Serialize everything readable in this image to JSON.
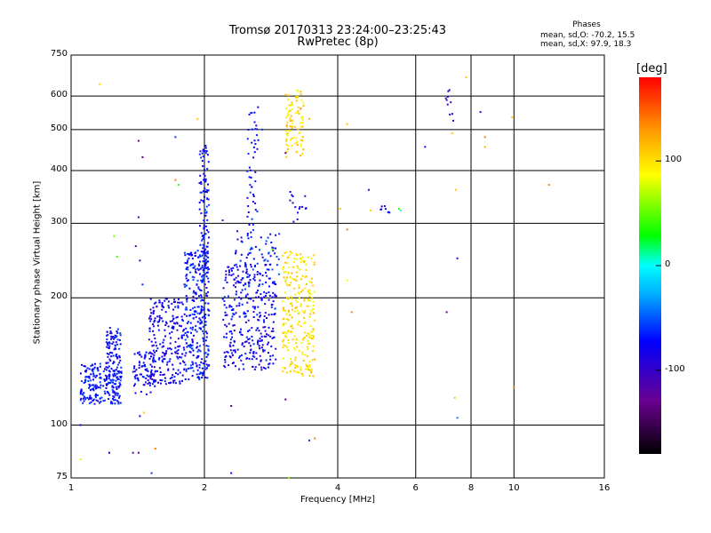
{
  "chart_data": {
    "type": "scatter",
    "title": "Tromsø 20170313 23:24:00–23:25:43",
    "subtitle": "RwPretec (8p)",
    "xlabel": "Frequency [MHz]",
    "ylabel": "Stationary phase Virtual Height [km]",
    "xscale": "log",
    "yscale": "log",
    "xlim": [
      1,
      16
    ],
    "ylim": [
      75,
      750
    ],
    "grid": true,
    "x_ticks": [
      "1",
      "2",
      "4",
      "6",
      "8",
      "10",
      "16"
    ],
    "y_ticks": [
      "75",
      "100",
      "200",
      "300",
      "400",
      "500",
      "600",
      "750"
    ],
    "phase_stats": {
      "header": "Phases",
      "line_o": "mean, sd,O: -70.2, 15.5",
      "line_x": "mean, sd,X:  97.9, 18.3"
    },
    "colorbar": {
      "label": "[deg]",
      "range": [
        -180,
        180
      ],
      "ticks": [
        "100",
        "0",
        "-100"
      ]
    },
    "groups": [
      {
        "x_range": [
          1.05,
          1.3
        ],
        "y_range": [
          112,
          140
        ],
        "phase": -70,
        "count": 230
      },
      {
        "x_range": [
          1.2,
          1.3
        ],
        "y_range": [
          140,
          170
        ],
        "phase": -75,
        "count": 70
      },
      {
        "x_range": [
          1.38,
          1.55
        ],
        "y_range": [
          118,
          150
        ],
        "phase": -80,
        "count": 80
      },
      {
        "x_range": [
          1.5,
          1.8
        ],
        "y_range": [
          125,
          200
        ],
        "phase": -80,
        "count": 220
      },
      {
        "x_range": [
          1.8,
          2.05
        ],
        "y_range": [
          128,
          260
        ],
        "phase": -70,
        "count": 330
      },
      {
        "x_range": [
          1.95,
          2.05
        ],
        "y_range": [
          250,
          460
        ],
        "phase": -72,
        "count": 90
      },
      {
        "x_range": [
          2.2,
          2.9
        ],
        "y_range": [
          135,
          240
        ],
        "phase": -80,
        "count": 300
      },
      {
        "x_range": [
          2.35,
          2.95
        ],
        "y_range": [
          200,
          290
        ],
        "phase": -70,
        "count": 90
      },
      {
        "x_range": [
          2.5,
          2.65
        ],
        "y_range": [
          280,
          570
        ],
        "phase": -72,
        "count": 50
      },
      {
        "x_range": [
          3.0,
          3.55
        ],
        "y_range": [
          130,
          260
        ],
        "phase": 98,
        "count": 260
      },
      {
        "x_range": [
          3.05,
          3.35
        ],
        "y_range": [
          430,
          620
        ],
        "phase": 100,
        "count": 90
      },
      {
        "x_range": [
          3.1,
          3.4
        ],
        "y_range": [
          300,
          360
        ],
        "phase": -90,
        "count": 14
      },
      {
        "x_range": [
          5.0,
          5.4
        ],
        "y_range": [
          318,
          330
        ],
        "phase": -85,
        "count": 8
      },
      {
        "x_range": [
          7.0,
          7.3
        ],
        "y_range": [
          520,
          620
        ],
        "phase": -95,
        "count": 8
      }
    ],
    "points": [
      {
        "x": 1.16,
        "y": 640,
        "phase": 100
      },
      {
        "x": 1.25,
        "y": 280,
        "phase": 60
      },
      {
        "x": 1.27,
        "y": 250,
        "phase": 40
      },
      {
        "x": 1.42,
        "y": 470,
        "phase": -130
      },
      {
        "x": 1.45,
        "y": 430,
        "phase": -140
      },
      {
        "x": 1.42,
        "y": 310,
        "phase": -100
      },
      {
        "x": 1.4,
        "y": 265,
        "phase": -120
      },
      {
        "x": 1.43,
        "y": 245,
        "phase": -110
      },
      {
        "x": 1.45,
        "y": 215,
        "phase": -60
      },
      {
        "x": 1.43,
        "y": 105,
        "phase": -90
      },
      {
        "x": 1.46,
        "y": 107,
        "phase": 110
      },
      {
        "x": 1.42,
        "y": 86,
        "phase": -130
      },
      {
        "x": 1.38,
        "y": 86,
        "phase": -120
      },
      {
        "x": 1.55,
        "y": 88,
        "phase": 140
      },
      {
        "x": 1.52,
        "y": 77,
        "phase": -60
      },
      {
        "x": 1.22,
        "y": 86,
        "phase": -80
      },
      {
        "x": 1.05,
        "y": 83,
        "phase": 80
      },
      {
        "x": 1.05,
        "y": 100,
        "phase": -100
      },
      {
        "x": 1.72,
        "y": 380,
        "phase": 140
      },
      {
        "x": 1.75,
        "y": 370,
        "phase": 40
      },
      {
        "x": 1.93,
        "y": 530,
        "phase": 110
      },
      {
        "x": 1.72,
        "y": 480,
        "phase": -60
      },
      {
        "x": 2.2,
        "y": 305,
        "phase": -60
      },
      {
        "x": 2.3,
        "y": 111,
        "phase": -140
      },
      {
        "x": 2.3,
        "y": 77,
        "phase": -70
      },
      {
        "x": 2.85,
        "y": 260,
        "phase": 50
      },
      {
        "x": 2.7,
        "y": 500,
        "phase": -60
      },
      {
        "x": 3.05,
        "y": 440,
        "phase": -120
      },
      {
        "x": 3.05,
        "y": 115,
        "phase": -140
      },
      {
        "x": 3.3,
        "y": 560,
        "phase": 140
      },
      {
        "x": 3.45,
        "y": 530,
        "phase": 120
      },
      {
        "x": 3.15,
        "y": 350,
        "phase": -90
      },
      {
        "x": 3.45,
        "y": 92,
        "phase": -60
      },
      {
        "x": 3.55,
        "y": 93,
        "phase": 140
      },
      {
        "x": 3.1,
        "y": 75,
        "phase": 60
      },
      {
        "x": 4.05,
        "y": 325,
        "phase": 110
      },
      {
        "x": 4.2,
        "y": 515,
        "phase": 110
      },
      {
        "x": 4.2,
        "y": 290,
        "phase": 140
      },
      {
        "x": 4.2,
        "y": 220,
        "phase": 90
      },
      {
        "x": 4.3,
        "y": 185,
        "phase": 140
      },
      {
        "x": 4.7,
        "y": 360,
        "phase": -100
      },
      {
        "x": 4.75,
        "y": 322,
        "phase": 110
      },
      {
        "x": 5.5,
        "y": 325,
        "phase": 40
      },
      {
        "x": 5.55,
        "y": 322,
        "phase": 10
      },
      {
        "x": 6.3,
        "y": 455,
        "phase": -100
      },
      {
        "x": 7.15,
        "y": 620,
        "phase": -100
      },
      {
        "x": 7.2,
        "y": 580,
        "phase": -110
      },
      {
        "x": 7.25,
        "y": 490,
        "phase": 110
      },
      {
        "x": 7.05,
        "y": 185,
        "phase": -130
      },
      {
        "x": 7.4,
        "y": 360,
        "phase": 110
      },
      {
        "x": 7.45,
        "y": 248,
        "phase": -90
      },
      {
        "x": 7.35,
        "y": 116,
        "phase": 110
      },
      {
        "x": 7.45,
        "y": 104,
        "phase": -40
      },
      {
        "x": 7.8,
        "y": 665,
        "phase": 110
      },
      {
        "x": 8.4,
        "y": 550,
        "phase": -70
      },
      {
        "x": 8.6,
        "y": 480,
        "phase": 140
      },
      {
        "x": 8.6,
        "y": 455,
        "phase": 120
      },
      {
        "x": 9.9,
        "y": 535,
        "phase": 110
      },
      {
        "x": 10.0,
        "y": 123,
        "phase": 140
      },
      {
        "x": 12.0,
        "y": 370,
        "phase": 140
      }
    ]
  }
}
